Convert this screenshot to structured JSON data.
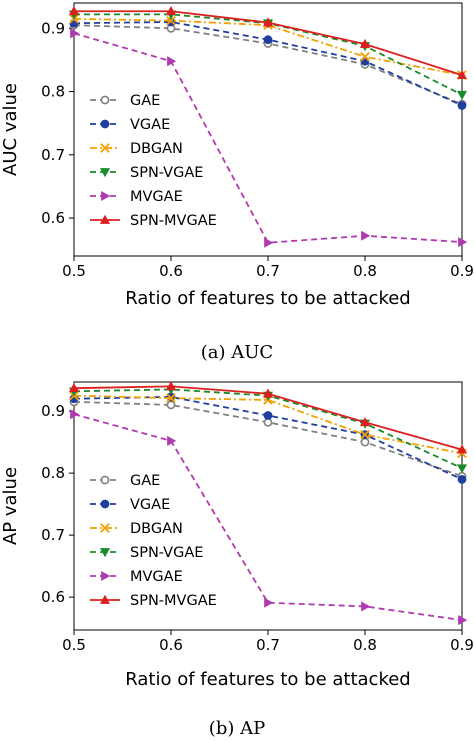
{
  "chart_data": [
    {
      "type": "line",
      "caption": "(a) AUC",
      "xlabel": "Ratio of features to be attacked",
      "ylabel": "AUC value",
      "x": [
        0.5,
        0.6,
        0.7,
        0.8,
        0.9
      ],
      "xticks": [
        "0.5",
        "0.6",
        "0.7",
        "0.8",
        "0.9"
      ],
      "yticks": [
        "0.6",
        "0.7",
        "0.8",
        "0.9"
      ],
      "xlim": [
        0.5,
        0.9
      ],
      "ylim": [
        0.54,
        0.94
      ],
      "grid": false,
      "legend_position": "bottom-left",
      "series": [
        {
          "name": "GAE",
          "values": [
            0.905,
            0.9,
            0.876,
            0.843,
            0.78
          ],
          "color": "#808080",
          "dash": "dashed",
          "marker": "circle-open"
        },
        {
          "name": "VGAE",
          "values": [
            0.908,
            0.91,
            0.882,
            0.848,
            0.778
          ],
          "color": "#1f3f9f",
          "dash": "dashed",
          "marker": "circle"
        },
        {
          "name": "DBGAN",
          "values": [
            0.915,
            0.912,
            0.905,
            0.855,
            0.826
          ],
          "color": "#f5a000",
          "dash": "dashdot",
          "marker": "x"
        },
        {
          "name": "SPN-VGAE",
          "values": [
            0.922,
            0.922,
            0.908,
            0.872,
            0.795
          ],
          "color": "#1a8a2a",
          "dash": "dashed",
          "marker": "triangle-down"
        },
        {
          "name": "MVGAE",
          "values": [
            0.892,
            0.848,
            0.561,
            0.572,
            0.562
          ],
          "color": "#b03ab0",
          "dash": "dashed",
          "marker": "triangle-right"
        },
        {
          "name": "SPN-MVGAE",
          "values": [
            0.927,
            0.927,
            0.909,
            0.875,
            0.826
          ],
          "color": "#dd1f1f",
          "dash": "solid",
          "marker": "triangle-up"
        }
      ]
    },
    {
      "type": "line",
      "caption": "(b) AP",
      "xlabel": "Ratio of features to be attacked",
      "ylabel": "AP value",
      "x": [
        0.5,
        0.6,
        0.7,
        0.8,
        0.9
      ],
      "xticks": [
        "0.5",
        "0.6",
        "0.7",
        "0.8",
        "0.9"
      ],
      "yticks": [
        "0.6",
        "0.7",
        "0.8",
        "0.9"
      ],
      "xlim": [
        0.5,
        0.9
      ],
      "ylim": [
        0.547,
        0.947
      ],
      "grid": false,
      "legend_position": "bottom-left",
      "series": [
        {
          "name": "GAE",
          "values": [
            0.915,
            0.91,
            0.882,
            0.85,
            0.795
          ],
          "color": "#808080",
          "dash": "dashed",
          "marker": "circle-open"
        },
        {
          "name": "VGAE",
          "values": [
            0.92,
            0.923,
            0.893,
            0.862,
            0.79
          ],
          "color": "#1f3f9f",
          "dash": "dashed",
          "marker": "circle"
        },
        {
          "name": "DBGAN",
          "values": [
            0.925,
            0.921,
            0.918,
            0.862,
            0.832
          ],
          "color": "#f5a000",
          "dash": "dashdot",
          "marker": "x"
        },
        {
          "name": "SPN-VGAE",
          "values": [
            0.932,
            0.935,
            0.925,
            0.88,
            0.808
          ],
          "color": "#1a8a2a",
          "dash": "dashed",
          "marker": "triangle-down"
        },
        {
          "name": "MVGAE",
          "values": [
            0.895,
            0.852,
            0.591,
            0.585,
            0.563
          ],
          "color": "#b03ab0",
          "dash": "dashed",
          "marker": "triangle-right"
        },
        {
          "name": "SPN-MVGAE",
          "values": [
            0.937,
            0.94,
            0.928,
            0.882,
            0.838
          ],
          "color": "#dd1f1f",
          "dash": "solid",
          "marker": "triangle-up"
        }
      ]
    }
  ]
}
